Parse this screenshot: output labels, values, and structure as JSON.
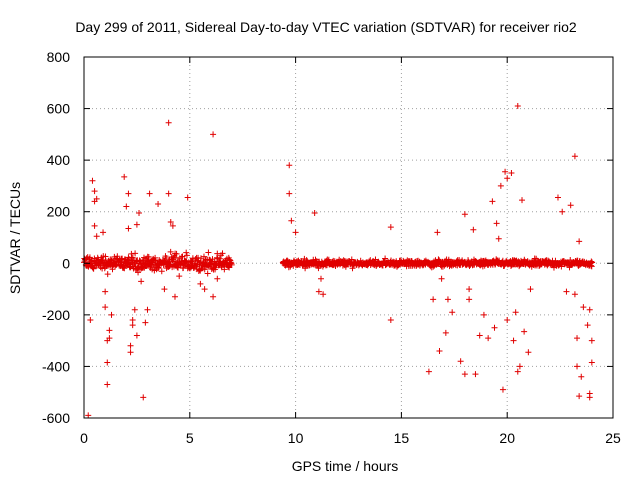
{
  "chart_data": {
    "type": "scatter",
    "title": "Day 299 of 2011, Sidereal Day-to-day VTEC variation (SDTVAR) for receiver rio2",
    "xlabel": "GPS time / hours",
    "ylabel": "SDTVAR / TECUs",
    "xlim": [
      0,
      25
    ],
    "ylim": [
      -600,
      800
    ],
    "xticks": [
      "0",
      "5",
      "10",
      "15",
      "20",
      "25"
    ],
    "xtick_values": [
      0,
      5,
      10,
      15,
      20,
      25
    ],
    "yticks": [
      "-600",
      "-400",
      "-200",
      "0",
      "200",
      "400",
      "600",
      "800"
    ],
    "ytick_values": [
      -600,
      -400,
      -200,
      0,
      200,
      400,
      600,
      800
    ],
    "grid": true,
    "marker": "+",
    "color": "#e00000",
    "series": [
      {
        "name": "rio2",
        "points": [
          [
            0.2,
            -590
          ],
          [
            0.3,
            -220
          ],
          [
            0.4,
            320
          ],
          [
            0.5,
            280
          ],
          [
            0.5,
            240
          ],
          [
            0.6,
            250
          ],
          [
            0.5,
            145
          ],
          [
            0.6,
            105
          ],
          [
            0.9,
            120
          ],
          [
            1.0,
            -110
          ],
          [
            1.0,
            -170
          ],
          [
            1.1,
            -300
          ],
          [
            1.1,
            -385
          ],
          [
            1.1,
            -470
          ],
          [
            1.2,
            -260
          ],
          [
            1.2,
            -290
          ],
          [
            1.3,
            -200
          ],
          [
            1.9,
            335
          ],
          [
            2.1,
            270
          ],
          [
            2.0,
            220
          ],
          [
            2.1,
            135
          ],
          [
            2.2,
            -345
          ],
          [
            2.2,
            -320
          ],
          [
            2.3,
            -240
          ],
          [
            2.3,
            -220
          ],
          [
            2.4,
            -180
          ],
          [
            2.5,
            -280
          ],
          [
            2.5,
            150
          ],
          [
            2.6,
            195
          ],
          [
            2.7,
            -70
          ],
          [
            2.8,
            -520
          ],
          [
            2.9,
            -230
          ],
          [
            3.0,
            -180
          ],
          [
            3.1,
            270
          ],
          [
            3.5,
            230
          ],
          [
            3.8,
            -100
          ],
          [
            4.0,
            545
          ],
          [
            4.0,
            270
          ],
          [
            4.1,
            160
          ],
          [
            4.2,
            145
          ],
          [
            4.3,
            -130
          ],
          [
            4.5,
            -50
          ],
          [
            4.9,
            255
          ],
          [
            5.5,
            -80
          ],
          [
            5.7,
            -100
          ],
          [
            6.1,
            500
          ],
          [
            6.1,
            -130
          ],
          [
            6.3,
            -60
          ],
          [
            9.7,
            380
          ],
          [
            9.7,
            270
          ],
          [
            9.8,
            165
          ],
          [
            10.0,
            120
          ],
          [
            10.9,
            195
          ],
          [
            11.1,
            -110
          ],
          [
            11.3,
            -120
          ],
          [
            11.2,
            -60
          ],
          [
            14.5,
            140
          ],
          [
            14.5,
            -220
          ],
          [
            16.3,
            -420
          ],
          [
            16.5,
            -140
          ],
          [
            16.7,
            120
          ],
          [
            16.8,
            -340
          ],
          [
            16.9,
            -60
          ],
          [
            17.1,
            -270
          ],
          [
            17.2,
            -140
          ],
          [
            17.4,
            -190
          ],
          [
            17.8,
            -380
          ],
          [
            18.0,
            190
          ],
          [
            18.0,
            -430
          ],
          [
            18.2,
            -140
          ],
          [
            18.2,
            -100
          ],
          [
            18.4,
            130
          ],
          [
            18.5,
            -430
          ],
          [
            18.7,
            -280
          ],
          [
            18.9,
            -200
          ],
          [
            19.1,
            -290
          ],
          [
            19.3,
            240
          ],
          [
            19.4,
            -250
          ],
          [
            19.5,
            155
          ],
          [
            19.6,
            95
          ],
          [
            19.7,
            300
          ],
          [
            19.8,
            -490
          ],
          [
            19.9,
            355
          ],
          [
            20.0,
            330
          ],
          [
            20.0,
            -220
          ],
          [
            20.2,
            350
          ],
          [
            20.3,
            -300
          ],
          [
            20.4,
            -190
          ],
          [
            20.5,
            610
          ],
          [
            20.5,
            -420
          ],
          [
            20.6,
            -400
          ],
          [
            20.7,
            245
          ],
          [
            20.8,
            -265
          ],
          [
            21.0,
            -345
          ],
          [
            21.1,
            -100
          ],
          [
            22.4,
            255
          ],
          [
            22.6,
            200
          ],
          [
            22.8,
            -110
          ],
          [
            23.0,
            225
          ],
          [
            23.2,
            415
          ],
          [
            23.2,
            -120
          ],
          [
            23.3,
            -290
          ],
          [
            23.3,
            -400
          ],
          [
            23.4,
            -515
          ],
          [
            23.4,
            85
          ],
          [
            23.5,
            -440
          ],
          [
            23.6,
            -170
          ],
          [
            23.8,
            -240
          ],
          [
            23.9,
            -180
          ],
          [
            23.9,
            -520
          ],
          [
            23.9,
            -505
          ],
          [
            24.0,
            -385
          ],
          [
            24.0,
            -300
          ]
        ]
      }
    ],
    "dense_bands": [
      {
        "x_start": 0.0,
        "x_end": 7.0,
        "center": 0,
        "spread": 55
      },
      {
        "x_start": 9.4,
        "x_end": 24.0,
        "center": 0,
        "spread": 22
      }
    ]
  }
}
